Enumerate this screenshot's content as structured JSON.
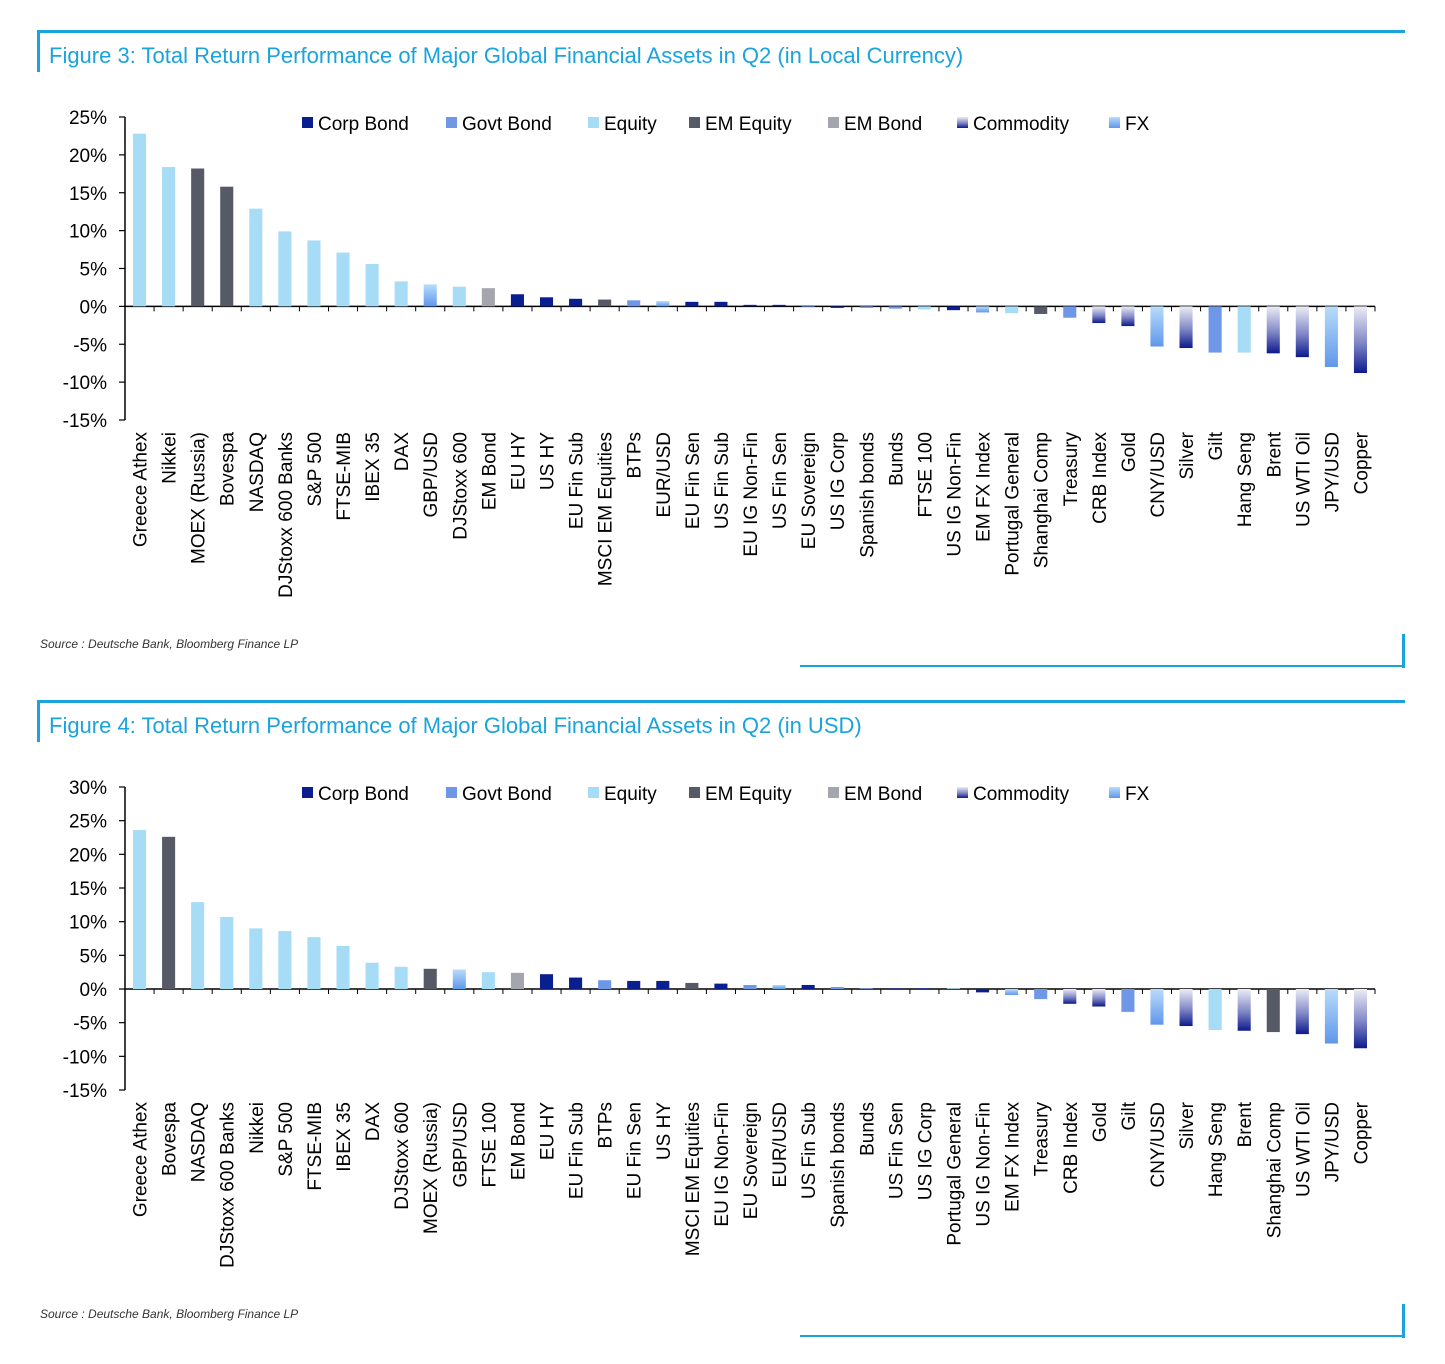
{
  "chart_data": [
    {
      "type": "bar",
      "title": "Figure 3: Total Return Performance of Major Global Financial Assets in Q2 (in Local Currency)",
      "source": "Source : Deutsche Bank, Bloomberg Finance LP",
      "ylim": [
        -15,
        25
      ],
      "yticks": [
        25,
        20,
        15,
        10,
        5,
        0,
        -5,
        -10,
        -15
      ],
      "ytick_labels": [
        "25%",
        "20%",
        "15%",
        "10%",
        "5%",
        "0%",
        "-5%",
        "-10%",
        "-15%"
      ],
      "legend_position": "top",
      "legend": [
        {
          "name": "Corp Bond",
          "color": "#0a1f8f"
        },
        {
          "name": "Govt Bond",
          "color": "#6f97e8"
        },
        {
          "name": "Equity",
          "color": "#a6dcf6"
        },
        {
          "name": "EM Equity",
          "color": "#555a66"
        },
        {
          "name": "EM Bond",
          "color": "#a4a6ad"
        },
        {
          "name": "Commodity",
          "color": "#1c2a9c"
        },
        {
          "name": "FX",
          "color": "#7ab2f2"
        }
      ],
      "categories": [
        "Greece Athex",
        "Nikkei",
        "MOEX (Russia)",
        "Bovespa",
        "NASDAQ",
        "DJStoxx 600 Banks",
        "S&P 500",
        "FTSE-MIB",
        "IBEX 35",
        "DAX",
        "GBP/USD",
        "DJStoxx 600",
        "EM Bond",
        "EU HY",
        "US HY",
        "EU Fin Sub",
        "MSCI EM Equities",
        "BTPs",
        "EUR/USD",
        "EU Fin Sen",
        "US Fin Sub",
        "EU IG Non-Fin",
        "US Fin Sen",
        "EU Sovereign",
        "US IG Corp",
        "Spanish bonds",
        "Bunds",
        "FTSE 100",
        "US IG Non-Fin",
        "EM FX Index",
        "Portugal General",
        "Shanghai Comp",
        "Treasury",
        "CRB Index",
        "Gold",
        "CNY/USD",
        "Silver",
        "Gilt",
        "Hang Seng",
        "Brent",
        "US WTI Oil",
        "JPY/USD",
        "Copper"
      ],
      "values": [
        22.8,
        18.4,
        18.2,
        15.8,
        12.9,
        9.9,
        8.7,
        7.1,
        5.6,
        3.3,
        2.9,
        2.6,
        2.4,
        1.6,
        1.2,
        1.0,
        0.9,
        0.8,
        0.7,
        0.6,
        0.6,
        0.2,
        0.2,
        0.0,
        -0.2,
        -0.2,
        -0.3,
        -0.4,
        -0.5,
        -0.8,
        -0.9,
        -1.0,
        -1.5,
        -2.2,
        -2.6,
        -5.3,
        -5.5,
        -6.1,
        -6.1,
        -6.2,
        -6.7,
        -8.0,
        -8.8
      ],
      "classes": [
        "Equity",
        "Equity",
        "EM Equity",
        "EM Equity",
        "Equity",
        "Equity",
        "Equity",
        "Equity",
        "Equity",
        "Equity",
        "FX",
        "Equity",
        "EM Bond",
        "Corp Bond",
        "Corp Bond",
        "Corp Bond",
        "EM Equity",
        "Govt Bond",
        "FX",
        "Corp Bond",
        "Corp Bond",
        "Corp Bond",
        "Corp Bond",
        "Govt Bond",
        "Corp Bond",
        "Govt Bond",
        "Govt Bond",
        "Equity",
        "Corp Bond",
        "FX",
        "Equity",
        "EM Equity",
        "Govt Bond",
        "Commodity",
        "Commodity",
        "FX",
        "Commodity",
        "Govt Bond",
        "Equity",
        "Commodity",
        "Commodity",
        "FX",
        "Commodity"
      ]
    },
    {
      "type": "bar",
      "title": "Figure 4: Total Return Performance of Major Global Financial Assets in Q2 (in USD)",
      "source": "Source : Deutsche Bank, Bloomberg Finance LP",
      "ylim": [
        -15,
        30
      ],
      "yticks": [
        30,
        25,
        20,
        15,
        10,
        5,
        0,
        -5,
        -10,
        -15
      ],
      "ytick_labels": [
        "30%",
        "25%",
        "20%",
        "15%",
        "10%",
        "5%",
        "0%",
        "-5%",
        "-10%",
        "-15%"
      ],
      "legend_position": "top",
      "legend": [
        {
          "name": "Corp Bond",
          "color": "#0a1f8f"
        },
        {
          "name": "Govt Bond",
          "color": "#6f97e8"
        },
        {
          "name": "Equity",
          "color": "#a6dcf6"
        },
        {
          "name": "EM Equity",
          "color": "#555a66"
        },
        {
          "name": "EM Bond",
          "color": "#a4a6ad"
        },
        {
          "name": "Commodity",
          "color": "#1c2a9c"
        },
        {
          "name": "FX",
          "color": "#7ab2f2"
        }
      ],
      "categories": [
        "Greece Athex",
        "Bovespa",
        "NASDAQ",
        "DJStoxx 600 Banks",
        "Nikkei",
        "S&P 500",
        "FTSE-MIB",
        "IBEX 35",
        "DAX",
        "DJStoxx 600",
        "MOEX (Russia)",
        "GBP/USD",
        "FTSE 100",
        "EM Bond",
        "EU HY",
        "EU Fin Sub",
        "BTPs",
        "EU Fin Sen",
        "US HY",
        "MSCI EM Equities",
        "EU IG Non-Fin",
        "EU Sovereign",
        "EUR/USD",
        "US Fin Sub",
        "Spanish bonds",
        "Bunds",
        "US Fin Sen",
        "US IG Corp",
        "Portugal General",
        "US IG Non-Fin",
        "EM FX Index",
        "Treasury",
        "CRB Index",
        "Gold",
        "Gilt",
        "CNY/USD",
        "Silver",
        "Hang Seng",
        "Brent",
        "Shanghai Comp",
        "US WTI Oil",
        "JPY/USD",
        "Copper"
      ],
      "values": [
        23.6,
        22.6,
        12.9,
        10.7,
        9.0,
        8.6,
        7.7,
        6.4,
        3.9,
        3.3,
        3.0,
        2.9,
        2.5,
        2.4,
        2.2,
        1.7,
        1.3,
        1.2,
        1.2,
        0.9,
        0.8,
        0.6,
        0.6,
        0.6,
        0.3,
        0.1,
        0.1,
        0.1,
        0.1,
        -0.5,
        -0.9,
        -1.5,
        -2.2,
        -2.6,
        -3.4,
        -5.3,
        -5.5,
        -6.1,
        -6.2,
        -6.4,
        -6.7,
        -8.1,
        -8.8
      ],
      "classes": [
        "Equity",
        "EM Equity",
        "Equity",
        "Equity",
        "Equity",
        "Equity",
        "Equity",
        "Equity",
        "Equity",
        "Equity",
        "EM Equity",
        "FX",
        "Equity",
        "EM Bond",
        "Corp Bond",
        "Corp Bond",
        "Govt Bond",
        "Corp Bond",
        "Corp Bond",
        "EM Equity",
        "Corp Bond",
        "Govt Bond",
        "FX",
        "Corp Bond",
        "Govt Bond",
        "Govt Bond",
        "Corp Bond",
        "Corp Bond",
        "Equity",
        "Corp Bond",
        "FX",
        "Govt Bond",
        "Commodity",
        "Commodity",
        "Govt Bond",
        "FX",
        "Commodity",
        "Equity",
        "Commodity",
        "EM Equity",
        "Commodity",
        "FX",
        "Commodity"
      ]
    }
  ]
}
